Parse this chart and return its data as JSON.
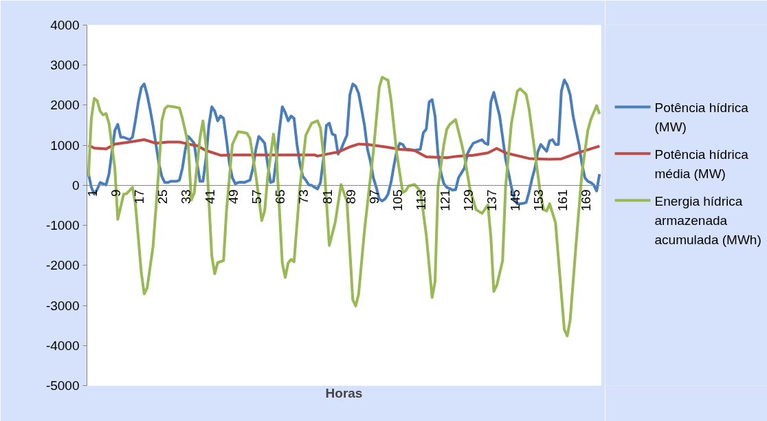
{
  "chart_data": {
    "type": "line",
    "xlabel": "Horas",
    "xlim": [
      0.5,
      175.5
    ],
    "xticks": [
      1,
      9,
      17,
      25,
      33,
      41,
      49,
      57,
      65,
      73,
      81,
      89,
      97,
      105,
      113,
      121,
      129,
      137,
      145,
      153,
      161,
      169
    ],
    "ylim": [
      -5000,
      4000
    ],
    "yticks": [
      -5000,
      -4000,
      -3000,
      -2000,
      -1000,
      0,
      1000,
      2000,
      3000,
      4000
    ],
    "grid": false,
    "legend": "right",
    "marker": "none",
    "line_style": "solid",
    "series": [
      {
        "name": "Potência hídrica (MW)",
        "color": "#4a7ebb",
        "x": [
          1,
          2,
          3,
          4,
          5,
          6,
          7,
          8,
          10,
          11,
          12,
          13,
          14,
          15,
          16,
          17,
          18,
          19,
          20,
          21,
          22,
          23,
          24,
          25,
          26,
          27,
          28,
          29,
          30,
          31,
          32,
          33,
          34,
          35,
          36,
          37,
          38,
          39,
          40,
          41,
          42,
          43,
          44,
          45,
          46,
          47,
          48,
          49,
          50,
          51,
          52,
          53,
          54,
          55,
          56,
          57,
          58,
          59,
          60,
          61,
          62,
          63,
          64,
          65,
          66,
          67,
          68,
          69,
          70,
          71,
          72,
          73,
          74,
          75,
          76,
          77,
          78,
          79,
          80,
          81,
          82,
          83,
          84,
          85,
          86,
          87,
          88,
          89,
          90,
          91,
          92,
          93,
          94,
          95,
          96,
          97,
          98,
          99,
          100,
          101,
          102,
          103,
          104,
          105,
          106,
          107,
          108,
          109,
          110,
          112,
          114,
          115,
          116,
          117,
          118,
          119,
          120,
          121,
          122,
          123,
          124,
          125,
          126,
          127,
          128,
          129,
          130,
          131,
          132,
          133,
          134,
          135,
          136,
          137,
          138,
          139,
          140,
          141,
          142,
          143,
          144,
          145,
          146,
          147,
          148,
          149,
          150,
          151,
          152,
          153,
          154,
          155,
          156,
          157,
          158,
          159,
          160,
          161,
          162,
          163,
          164,
          165,
          166,
          167,
          168,
          169,
          170,
          171,
          172,
          173,
          174,
          175
        ],
        "values": [
          300,
          -50,
          -220,
          -100,
          70,
          40,
          10,
          280,
          1370,
          1520,
          1200,
          1200,
          1170,
          1140,
          1200,
          1610,
          2080,
          2440,
          2530,
          2260,
          1900,
          1490,
          1020,
          540,
          220,
          70,
          70,
          100,
          100,
          100,
          130,
          430,
          900,
          1220,
          1140,
          1050,
          540,
          100,
          100,
          660,
          1490,
          1960,
          1850,
          1610,
          1730,
          1670,
          1140,
          540,
          190,
          40,
          70,
          80,
          70,
          100,
          130,
          430,
          900,
          1220,
          1140,
          1050,
          540,
          70,
          100,
          660,
          1370,
          1960,
          1820,
          1610,
          1730,
          1670,
          1020,
          540,
          220,
          130,
          10,
          0,
          -50,
          -90,
          70,
          660,
          1490,
          1550,
          1280,
          1250,
          780,
          900,
          1080,
          1250,
          2260,
          2530,
          2470,
          2290,
          1900,
          1490,
          900,
          600,
          190,
          -50,
          -340,
          -390,
          -340,
          -220,
          70,
          490,
          870,
          1050,
          1020,
          900,
          900,
          870,
          900,
          1310,
          1400,
          2080,
          2140,
          1730,
          780,
          310,
          40,
          -50,
          -80,
          -120,
          -110,
          190,
          310,
          430,
          780,
          930,
          1050,
          1080,
          1110,
          1140,
          1050,
          1020,
          2080,
          2320,
          2020,
          1730,
          1200,
          660,
          310,
          -50,
          -340,
          -460,
          -460,
          -450,
          -430,
          -170,
          160,
          430,
          840,
          1020,
          930,
          850,
          1110,
          1140,
          1020,
          1020,
          2350,
          2630,
          2500,
          2260,
          1730,
          1370,
          1020,
          540,
          190,
          100,
          70,
          10,
          -140,
          280
        ]
      },
      {
        "name": "Potência hídrica média (MW)",
        "color": "#be4b48",
        "x": [
          1,
          3,
          7,
          10,
          15,
          20,
          24,
          28,
          32,
          35,
          38,
          41,
          46,
          51,
          78,
          79,
          83,
          86,
          90,
          93,
          96,
          102,
          107,
          112,
          116,
          123,
          127,
          132,
          137,
          140,
          143,
          151,
          158,
          162,
          168,
          175
        ],
        "values": [
          1000,
          930,
          910,
          1030,
          1080,
          1140,
          1050,
          1080,
          1080,
          1030,
          990,
          870,
          750,
          760,
          760,
          730,
          790,
          830,
          960,
          1030,
          1020,
          960,
          900,
          870,
          710,
          690,
          730,
          750,
          810,
          920,
          810,
          670,
          650,
          660,
          820,
          980
        ]
      },
      {
        "name": "Energia hídrica armazenada acumulada (MWh)",
        "color": "#98b954",
        "x": [
          1,
          2,
          3,
          4,
          5,
          6,
          7,
          8,
          10,
          11,
          13,
          14,
          16,
          17,
          19,
          20,
          21,
          23,
          25,
          26,
          27,
          28,
          30,
          32,
          33,
          35,
          36,
          37,
          39,
          40,
          41,
          43,
          44,
          45,
          47,
          48,
          50,
          52,
          53,
          55,
          56,
          58,
          60,
          61,
          62,
          64,
          65,
          67,
          68,
          69,
          70,
          71,
          73,
          75,
          77,
          79,
          80,
          81,
          83,
          85,
          87,
          89,
          91,
          92,
          93,
          95,
          98,
          100,
          101,
          103,
          104,
          106,
          108,
          109,
          110,
          112,
          114,
          116,
          118,
          119,
          120,
          122,
          123,
          124,
          126,
          128,
          129,
          131,
          133,
          135,
          137,
          138,
          139,
          140,
          142,
          143,
          145,
          147,
          148,
          150,
          151,
          155,
          156,
          157,
          158,
          160,
          161,
          163,
          164,
          165,
          167,
          169,
          171,
          172,
          174,
          175
        ],
        "values": [
          220,
          1670,
          2170,
          2110,
          1850,
          1760,
          1790,
          1550,
          430,
          -850,
          -220,
          -210,
          -50,
          -460,
          -2180,
          -2710,
          -2560,
          -1530,
          430,
          1610,
          1910,
          1980,
          1960,
          1930,
          1670,
          1020,
          -370,
          -200,
          1200,
          1610,
          1020,
          -1760,
          -2210,
          -1930,
          -1880,
          -640,
          1020,
          1340,
          1330,
          1300,
          1170,
          250,
          -880,
          -640,
          190,
          1280,
          780,
          -1940,
          -2300,
          -1940,
          -1850,
          -1910,
          -50,
          1250,
          1550,
          1610,
          1430,
          780,
          -1500,
          -930,
          20,
          -400,
          -2860,
          -3010,
          -2710,
          -1110,
          840,
          2440,
          2700,
          2620,
          2140,
          780,
          -180,
          -140,
          -20,
          20,
          -140,
          -1230,
          -2800,
          -2410,
          -50,
          1020,
          1400,
          1520,
          1640,
          1050,
          720,
          -140,
          -610,
          -700,
          -490,
          -1290,
          -2650,
          -2500,
          -1880,
          -50,
          1550,
          2350,
          2410,
          2270,
          1910,
          -280,
          -610,
          -640,
          -460,
          -930,
          -1820,
          -3600,
          -3760,
          -3360,
          -1470,
          310,
          1370,
          1640,
          1990,
          1780
        ]
      }
    ]
  }
}
